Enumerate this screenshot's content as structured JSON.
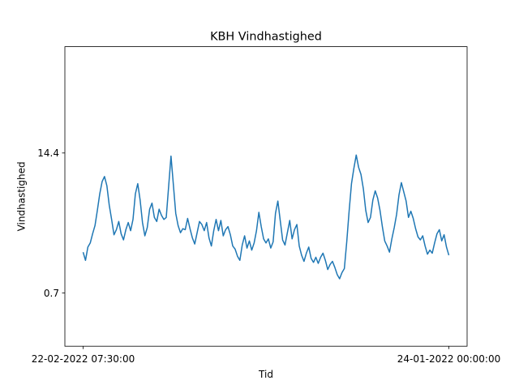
{
  "chart_data": {
    "type": "line",
    "title": "KBH Vindhastighed",
    "xlabel": "Tid",
    "ylabel": "Vindhastighed",
    "x_tick_labels": [
      "22-02-2022 07:30:00",
      "24-01-2022 00:00:00"
    ],
    "y_ticks": [
      {
        "value": 0.7,
        "label": "0.7"
      },
      {
        "value": 14.4,
        "label": "14.4"
      }
    ],
    "ylim": [
      -4.5,
      24.8
    ],
    "grid": false,
    "legend": "none",
    "series": [
      {
        "color": "#1f77b4",
        "values": [
          4.7,
          3.9,
          5.2,
          5.6,
          6.5,
          7.3,
          8.8,
          10.4,
          11.6,
          12.1,
          11.2,
          9.3,
          7.9,
          6.4,
          6.9,
          7.7,
          6.5,
          5.9,
          6.9,
          7.6,
          6.8,
          7.9,
          10.4,
          11.4,
          9.8,
          7.6,
          6.3,
          7.1,
          8.9,
          9.5,
          8.1,
          7.7,
          8.9,
          8.3,
          7.9,
          8.1,
          11.1,
          14.1,
          11.3,
          8.5,
          7.3,
          6.6,
          7.0,
          6.9,
          8.0,
          7.0,
          6.1,
          5.5,
          6.6,
          7.7,
          7.4,
          6.8,
          7.6,
          6.1,
          5.3,
          6.8,
          7.9,
          6.8,
          7.8,
          6.3,
          6.9,
          7.2,
          6.4,
          5.3,
          5.0,
          4.3,
          3.9,
          5.4,
          6.3,
          5.1,
          5.8,
          4.9,
          5.6,
          6.8,
          8.6,
          7.2,
          6.0,
          5.6,
          6.0,
          5.1,
          5.7,
          8.5,
          9.7,
          7.8,
          5.9,
          5.4,
          6.6,
          7.8,
          6.0,
          6.9,
          7.4,
          5.3,
          4.4,
          3.8,
          4.6,
          5.2,
          4.1,
          3.7,
          4.2,
          3.6,
          4.2,
          4.6,
          3.9,
          3.0,
          3.5,
          3.8,
          3.2,
          2.5,
          2.1,
          2.7,
          3.1,
          5.7,
          8.7,
          11.4,
          12.9,
          14.2,
          13.0,
          12.3,
          10.9,
          8.8,
          7.6,
          8.1,
          9.8,
          10.7,
          10.0,
          8.8,
          7.2,
          5.8,
          5.3,
          4.7,
          6.0,
          7.1,
          8.4,
          10.3,
          11.5,
          10.6,
          9.7,
          8.1,
          8.7,
          8.0,
          7.0,
          6.2,
          5.9,
          6.3,
          5.3,
          4.5,
          4.9,
          4.6,
          5.6,
          6.5,
          6.9,
          5.8,
          6.4,
          5.2,
          4.4
        ]
      }
    ]
  }
}
